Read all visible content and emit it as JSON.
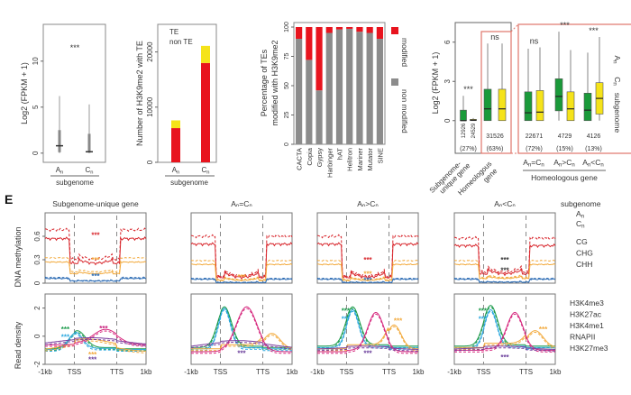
{
  "chart_data": [
    {
      "id": "A1",
      "type": "box",
      "title": "",
      "ylabel": "Log2 (FPKM + 1)",
      "xlabel": "subgenome",
      "ylim": [
        -1,
        14
      ],
      "yticks": [
        0,
        5,
        10
      ],
      "categories": [
        "An",
        "Cn"
      ],
      "boxes": [
        {
          "name": "An",
          "min": 0,
          "q1": 0.1,
          "median": 0.8,
          "q3": 2.5,
          "max": 6.2
        },
        {
          "name": "Cn",
          "min": 0,
          "q1": 0.05,
          "median": 0.15,
          "q3": 2.1,
          "max": 5.3
        }
      ],
      "annotation": "***"
    },
    {
      "id": "A2",
      "type": "bar",
      "stacked": true,
      "ylabel": "Number of H3K9me2 with TE",
      "xlabel": "subgenome",
      "ylim": [
        0,
        25000
      ],
      "yticks": [
        0,
        10000,
        20000
      ],
      "categories": [
        "An",
        "Cn"
      ],
      "series": [
        {
          "name": "TE",
          "color": "#e8141e",
          "values": [
            6200,
            18000
          ]
        },
        {
          "name": "non TE",
          "color": "#f5e31a",
          "values": [
            1400,
            3100
          ]
        }
      ],
      "legend": [
        "TE",
        "non TE"
      ]
    },
    {
      "id": "A3",
      "type": "bar",
      "stacked": true,
      "ylabel": "Percentage of TEs modified with H3K9me2",
      "ylim": [
        0,
        100
      ],
      "yticks": [
        0,
        25,
        50,
        75,
        100
      ],
      "categories": [
        "CACTA",
        "Copia",
        "Gypsy",
        "Harbinger",
        "hAT",
        "Helitron",
        "Mariner",
        "Mutator",
        "SINE"
      ],
      "series": [
        {
          "name": "non modified",
          "color": "#8c8c8c",
          "values": [
            90,
            72,
            46,
            95,
            98,
            98.5,
            96,
            95,
            90
          ]
        },
        {
          "name": "modified",
          "color": "#e8141e",
          "values": [
            10,
            28,
            54,
            5,
            2,
            1.5,
            4,
            5,
            10
          ]
        }
      ],
      "legend": [
        "modified",
        "non modified"
      ]
    },
    {
      "id": "A4",
      "type": "box",
      "ylabel": "Log2 (FPKM + 1)",
      "ylim": [
        -2.5,
        7.5
      ],
      "yticks": [
        0,
        3,
        6
      ],
      "groups": [
        {
          "label": "Subgenome-unique gene",
          "counts": [
            "12926",
            "24529"
          ],
          "pct": "(27%)",
          "annotation": "***",
          "boxes": [
            {
              "subgenome": "An",
              "min": 0,
              "q1": 0,
              "median": 0,
              "q3": 0.8,
              "max": 1.9
            },
            {
              "subgenome": "Cn",
              "min": 0,
              "q1": 0,
              "median": 0.03,
              "q3": 0.1,
              "max": 0.2
            }
          ]
        },
        {
          "label": "Homeologous gene",
          "counts": [
            "31526"
          ],
          "pct": "(63%)",
          "annotation": "ns",
          "boxes": [
            {
              "subgenome": "An",
              "min": 0,
              "q1": 0,
              "median": 0.9,
              "q3": 2.4,
              "max": 5.9
            },
            {
              "subgenome": "Cn",
              "min": 0,
              "q1": 0,
              "median": 0.9,
              "q3": 2.4,
              "max": 5.9
            }
          ]
        },
        {
          "label": "An=Cn",
          "counts": [
            "22671"
          ],
          "pct": "(72%)",
          "annotation": "ns",
          "boxes": [
            {
              "subgenome": "An",
              "min": 0,
              "q1": 0,
              "median": 0.6,
              "q3": 2.2,
              "max": 5.5
            },
            {
              "subgenome": "Cn",
              "min": 0,
              "q1": 0,
              "median": 0.65,
              "q3": 2.3,
              "max": 5.6
            }
          ]
        },
        {
          "label": "An>Cn",
          "counts": [
            "4729"
          ],
          "pct": "(15%)",
          "annotation": "***",
          "boxes": [
            {
              "subgenome": "An",
              "min": 0,
              "q1": 0.75,
              "median": 1.85,
              "q3": 3.2,
              "max": 6.8
            },
            {
              "subgenome": "Cn",
              "min": 0,
              "q1": 0,
              "median": 0.9,
              "q3": 2.2,
              "max": 5.4
            }
          ]
        },
        {
          "label": "An<Cn",
          "counts": [
            "4126"
          ],
          "pct": "(13%)",
          "annotation": "***",
          "boxes": [
            {
              "subgenome": "An",
              "min": 0,
              "q1": 0,
              "median": 0.8,
              "q3": 2.1,
              "max": 5.2
            },
            {
              "subgenome": "Cn",
              "min": 0,
              "q1": 0.5,
              "median": 1.7,
              "q3": 2.9,
              "max": 6.4
            }
          ]
        }
      ],
      "group_axis_label": "Homeologous gene",
      "legend": {
        "An": "#1a9a3a",
        "Cn": "#f5e31a",
        "title": "subgenome"
      }
    },
    {
      "id": "E",
      "type": "line",
      "panel_label": "E",
      "x_ticks": [
        "-1kb",
        "TSS",
        "TTS",
        "1kb"
      ],
      "row_ylabels": [
        "DNA methylation",
        "Read density"
      ],
      "methylation_yticks": [
        0,
        0.3,
        0.6
      ],
      "methylation_ylim": [
        0,
        0.9
      ],
      "density_yticks": [
        -2,
        0,
        2
      ],
      "density_ylim": [
        -2,
        3
      ],
      "columns": [
        {
          "title": "Subgenome-unique gene",
          "meth_stars": [
            {
              "color": "#d8262c",
              "y": 0.62
            },
            {
              "color": "#f2a93b",
              "y": 0.3
            },
            {
              "color": "#2e6db5",
              "y": 0.09
            }
          ],
          "dens_stars": [
            {
              "color": "#1a9a4a",
              "x": 0.2,
              "y": 0.5
            },
            {
              "color": "#2aa8df",
              "x": 0.2,
              "y": -0.05
            },
            {
              "color": "#c8207c",
              "x": 0.58,
              "y": 0.55
            },
            {
              "color": "#f2a93b",
              "x": 0.47,
              "y": -1.3
            },
            {
              "color": "#6a3d9a",
              "x": 0.47,
              "y": -1.65
            }
          ]
        },
        {
          "title": "An=Cn",
          "meth_stars": [
            {
              "color": "#f2a93b",
              "y": 0.08
            }
          ],
          "dens_stars": [
            {
              "color": "#6a3d9a",
              "x": 0.5,
              "y": -1.2
            }
          ]
        },
        {
          "title": "An>Cn",
          "meth_stars": [
            {
              "color": "#d8262c",
              "y": 0.3
            },
            {
              "color": "#f2a93b",
              "y": 0.12
            },
            {
              "color": "#2e6db5",
              "y": 0.04
            }
          ],
          "dens_stars": [
            {
              "color": "#1a9a4a",
              "x": 0.28,
              "y": 1.8
            },
            {
              "color": "#2aa8df",
              "x": 0.28,
              "y": 1.25
            },
            {
              "color": "#f2a93b",
              "x": 0.8,
              "y": 1.1
            },
            {
              "color": "#6a3d9a",
              "x": 0.5,
              "y": -1.2
            }
          ]
        },
        {
          "title": "An<Cn",
          "meth_stars": [
            {
              "color": "#333333",
              "y": 0.3
            },
            {
              "color": "#333333",
              "y": 0.17
            }
          ],
          "dens_stars": [
            {
              "color": "#1a9a4a",
              "x": 0.28,
              "y": 1.8
            },
            {
              "color": "#2aa8df",
              "x": 0.28,
              "y": 1.25
            },
            {
              "color": "#f2a93b",
              "x": 0.88,
              "y": 0.5
            },
            {
              "color": "#6a3d9a",
              "x": 0.5,
              "y": -1.5
            }
          ]
        }
      ],
      "methylation_series": [
        {
          "name": "CG",
          "color": "#d8262c"
        },
        {
          "name": "CHG",
          "color": "#f2a93b"
        },
        {
          "name": "CHH",
          "color": "#2e6db5"
        }
      ],
      "density_series": [
        {
          "name": "H3K4me3",
          "color": "#1a9a4a"
        },
        {
          "name": "H3K27ac",
          "color": "#2aa8df"
        },
        {
          "name": "H3K4me1",
          "color": "#f2a93b"
        },
        {
          "name": "RNAPII",
          "color": "#d6287e"
        },
        {
          "name": "H3K27me3",
          "color": "#7a3d9e"
        }
      ],
      "line_style": {
        "An": "solid",
        "Cn": "dashed"
      },
      "legend": {
        "subgenome_title": "subgenome",
        "subgenomes": [
          "An",
          "Cn"
        ],
        "methylation": [
          "CG",
          "CHG",
          "CHH"
        ],
        "density": [
          "H3K4me3",
          "H3K27ac",
          "H3K4me1",
          "RNAPII",
          "H3K27me3"
        ]
      }
    }
  ],
  "labels": {
    "panel_e": "E",
    "subgenome": "subgenome",
    "an": "An",
    "cn": "Cn",
    "an_sub": "A",
    "cn_sub": "C",
    "n": "n",
    "homeologous_gene": "Homeologous gene",
    "subgenome_unique_line1": "Subgenome-",
    "subgenome_unique_line2": "unique gene",
    "homeologous_line1": "Homeologous",
    "homeologous_line2": "gene",
    "legend_subgenome": "subgenome"
  }
}
